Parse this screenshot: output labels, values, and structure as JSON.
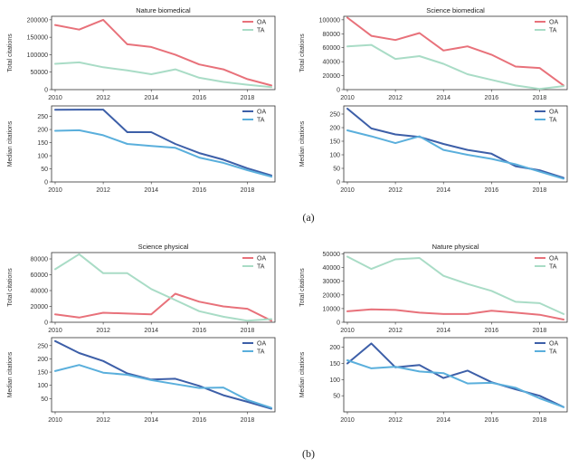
{
  "figure": {
    "captions": [
      "(a)",
      "(b)"
    ]
  },
  "colors": {
    "OA_total": "#e8717a",
    "TA_total": "#a9dcc6",
    "OA_median": "#3d5fa8",
    "TA_median": "#5aafdc"
  },
  "chart_data": [
    {
      "type": "line",
      "title": "Nature biomedical",
      "xlabel": "",
      "ylabel": "Total citations",
      "x": [
        2010,
        2011,
        2012,
        2013,
        2014,
        2015,
        2016,
        2017,
        2018,
        2019
      ],
      "xticks": [
        2010,
        2012,
        2014,
        2016,
        2018
      ],
      "ylim": [
        0,
        210000
      ],
      "yticks": [
        0,
        50000,
        100000,
        150000,
        200000
      ],
      "legend": "top-right",
      "grid": false,
      "colorset": "total",
      "series": [
        {
          "name": "OA",
          "values": [
            185000,
            172000,
            200000,
            130000,
            122000,
            100000,
            72000,
            58000,
            30000,
            12000
          ]
        },
        {
          "name": "TA",
          "values": [
            74000,
            78000,
            64000,
            55000,
            44000,
            58000,
            34000,
            22000,
            14000,
            7000
          ]
        }
      ]
    },
    {
      "type": "line",
      "title": "Science biomedical",
      "xlabel": "",
      "ylabel": "Total citations",
      "x": [
        2010,
        2011,
        2012,
        2013,
        2014,
        2015,
        2016,
        2017,
        2018,
        2019
      ],
      "xticks": [
        2010,
        2012,
        2014,
        2016,
        2018
      ],
      "ylim": [
        0,
        105000
      ],
      "yticks": [
        0,
        20000,
        40000,
        60000,
        80000,
        100000
      ],
      "legend": "top-right",
      "grid": false,
      "colorset": "total",
      "series": [
        {
          "name": "OA",
          "values": [
            103000,
            77000,
            71000,
            81000,
            56000,
            62000,
            50000,
            33000,
            31000,
            6000
          ]
        },
        {
          "name": "TA",
          "values": [
            62000,
            64000,
            44000,
            48000,
            37000,
            22000,
            14000,
            6000,
            1000,
            5000
          ]
        }
      ]
    },
    {
      "type": "line",
      "title": "",
      "xlabel": "",
      "ylabel": "Median citations",
      "x": [
        2010,
        2011,
        2012,
        2013,
        2014,
        2015,
        2016,
        2017,
        2018,
        2019
      ],
      "xticks": [
        2010,
        2012,
        2014,
        2016,
        2018
      ],
      "ylim": [
        0,
        290
      ],
      "yticks": [
        0,
        50,
        100,
        150,
        200,
        250
      ],
      "legend": "top-right",
      "grid": false,
      "colorset": "median",
      "series": [
        {
          "name": "OA",
          "values": [
            275,
            276,
            276,
            190,
            190,
            145,
            110,
            85,
            52,
            25
          ]
        },
        {
          "name": "TA",
          "values": [
            195,
            197,
            178,
            145,
            137,
            130,
            93,
            73,
            45,
            20
          ]
        }
      ]
    },
    {
      "type": "line",
      "title": "",
      "xlabel": "",
      "ylabel": "Median citations",
      "x": [
        2010,
        2011,
        2012,
        2013,
        2014,
        2015,
        2016,
        2017,
        2018,
        2019
      ],
      "xticks": [
        2010,
        2012,
        2014,
        2016,
        2018
      ],
      "ylim": [
        0,
        280
      ],
      "yticks": [
        0,
        50,
        100,
        150,
        200,
        250
      ],
      "legend": "top-right",
      "grid": false,
      "colorset": "median",
      "series": [
        {
          "name": "OA",
          "values": [
            270,
            197,
            175,
            166,
            140,
            118,
            104,
            58,
            43,
            15
          ]
        },
        {
          "name": "TA",
          "values": [
            190,
            168,
            143,
            168,
            118,
            100,
            85,
            65,
            38,
            12
          ]
        }
      ]
    },
    {
      "type": "line",
      "title": "Science physical",
      "xlabel": "",
      "ylabel": "Total citations",
      "x": [
        2010,
        2011,
        2012,
        2013,
        2014,
        2015,
        2016,
        2017,
        2018,
        2019
      ],
      "xticks": [
        2010,
        2012,
        2014,
        2016,
        2018
      ],
      "ylim": [
        0,
        88000
      ],
      "yticks": [
        0,
        20000,
        40000,
        60000,
        80000
      ],
      "legend": "top-right",
      "grid": false,
      "colorset": "total",
      "series": [
        {
          "name": "OA",
          "values": [
            10000,
            6000,
            12000,
            11000,
            10000,
            36000,
            26000,
            20000,
            17000,
            2000
          ]
        },
        {
          "name": "TA",
          "values": [
            67000,
            86000,
            62000,
            62000,
            42000,
            28000,
            14000,
            7000,
            2000,
            4000
          ]
        }
      ]
    },
    {
      "type": "line",
      "title": "Nature physical",
      "xlabel": "",
      "ylabel": "Total citations",
      "x": [
        2010,
        2011,
        2012,
        2013,
        2014,
        2015,
        2016,
        2017,
        2018,
        2019
      ],
      "xticks": [
        2010,
        2012,
        2014,
        2016,
        2018
      ],
      "ylim": [
        0,
        51000
      ],
      "yticks": [
        0,
        10000,
        20000,
        30000,
        40000,
        50000
      ],
      "legend": "top-right",
      "grid": false,
      "colorset": "total",
      "series": [
        {
          "name": "OA",
          "values": [
            8000,
            9500,
            9000,
            7000,
            6000,
            6000,
            8500,
            7000,
            5500,
            2000
          ]
        },
        {
          "name": "TA",
          "values": [
            48000,
            39000,
            46000,
            47000,
            34000,
            28000,
            23000,
            15000,
            14000,
            6000
          ]
        }
      ]
    },
    {
      "type": "line",
      "title": "",
      "xlabel": "",
      "ylabel": "Median citations",
      "x": [
        2010,
        2011,
        2012,
        2013,
        2014,
        2015,
        2016,
        2017,
        2018,
        2019
      ],
      "xticks": [
        2010,
        2012,
        2014,
        2016,
        2018
      ],
      "ylim": [
        0,
        280
      ],
      "yticks": [
        50,
        100,
        150,
        200,
        250
      ],
      "legend": "top-right",
      "grid": false,
      "colorset": "median",
      "series": [
        {
          "name": "OA",
          "values": [
            267,
            222,
            192,
            145,
            122,
            125,
            98,
            63,
            38,
            12
          ]
        },
        {
          "name": "TA",
          "values": [
            154,
            177,
            148,
            140,
            120,
            105,
            90,
            92,
            45,
            15
          ]
        }
      ]
    },
    {
      "type": "line",
      "title": "",
      "xlabel": "",
      "ylabel": "Median citations",
      "x": [
        2010,
        2011,
        2012,
        2013,
        2014,
        2015,
        2016,
        2017,
        2018,
        2019
      ],
      "xticks": [
        2010,
        2012,
        2014,
        2016,
        2018
      ],
      "ylim": [
        0,
        230
      ],
      "yticks": [
        50,
        100,
        150,
        200
      ],
      "legend": "top-right",
      "grid": false,
      "colorset": "median",
      "series": [
        {
          "name": "OA",
          "values": [
            150,
            212,
            138,
            145,
            105,
            128,
            92,
            70,
            50,
            15
          ]
        },
        {
          "name": "TA",
          "values": [
            160,
            135,
            140,
            125,
            120,
            88,
            90,
            75,
            42,
            15
          ]
        }
      ]
    }
  ]
}
